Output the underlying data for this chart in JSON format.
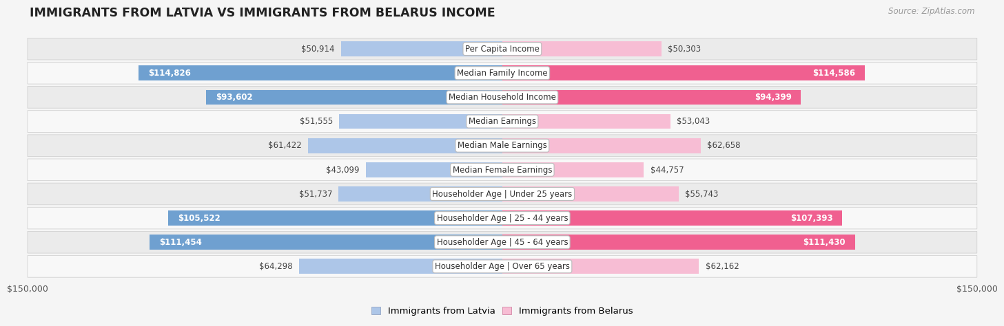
{
  "title": "IMMIGRANTS FROM LATVIA VS IMMIGRANTS FROM BELARUS INCOME",
  "source": "Source: ZipAtlas.com",
  "categories": [
    "Per Capita Income",
    "Median Family Income",
    "Median Household Income",
    "Median Earnings",
    "Median Male Earnings",
    "Median Female Earnings",
    "Householder Age | Under 25 years",
    "Householder Age | 25 - 44 years",
    "Householder Age | 45 - 64 years",
    "Householder Age | Over 65 years"
  ],
  "latvia_values": [
    50914,
    114826,
    93602,
    51555,
    61422,
    43099,
    51737,
    105522,
    111454,
    64298
  ],
  "belarus_values": [
    50303,
    114586,
    94399,
    53043,
    62658,
    44757,
    55743,
    107393,
    111430,
    62162
  ],
  "latvia_labels": [
    "$50,914",
    "$114,826",
    "$93,602",
    "$51,555",
    "$61,422",
    "$43,099",
    "$51,737",
    "$105,522",
    "$111,454",
    "$64,298"
  ],
  "belarus_labels": [
    "$50,303",
    "$114,586",
    "$94,399",
    "$53,043",
    "$62,658",
    "$44,757",
    "$55,743",
    "$107,393",
    "$111,430",
    "$62,162"
  ],
  "latvia_color_light": "#adc6e8",
  "latvia_color_dark": "#6fa0d0",
  "belarus_color_light": "#f7bdd4",
  "belarus_color_dark": "#f06090",
  "max_value": 150000,
  "bar_height": 0.62,
  "background_color": "#f5f5f5",
  "row_color_odd": "#ebebeb",
  "row_color_even": "#f8f8f8",
  "legend_latvia": "Immigrants from Latvia",
  "legend_belarus": "Immigrants from Belarus",
  "xlabel_left": "$150,000",
  "xlabel_right": "$150,000",
  "inside_threshold": 75000
}
